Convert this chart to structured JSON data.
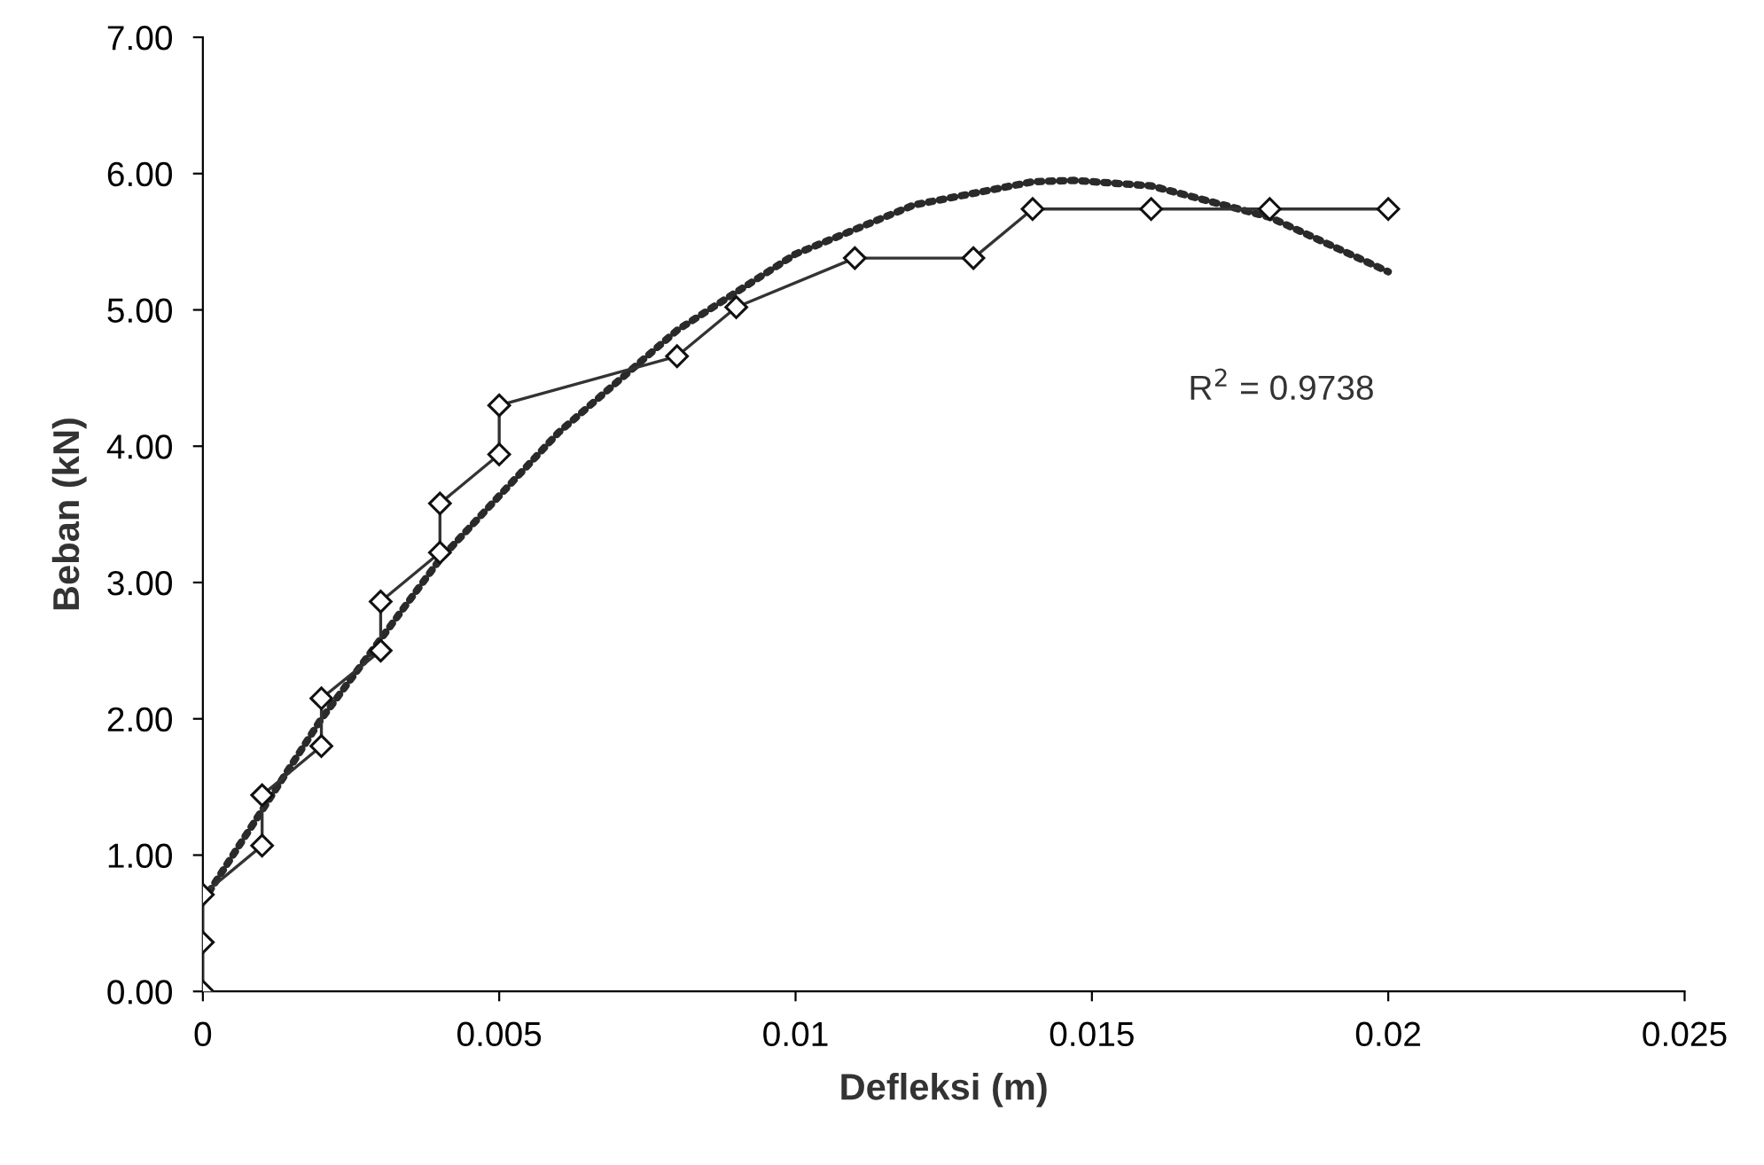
{
  "chart_data": {
    "type": "line",
    "xlabel": "Defleksi (m)",
    "ylabel": "Beban (kN)",
    "xlim": [
      0,
      0.025
    ],
    "xticks": [
      0,
      0.005,
      0.01,
      0.015,
      0.02,
      0.025
    ],
    "ylim": [
      0,
      7
    ],
    "yticks": [
      {
        "value": 0,
        "label": "0.00"
      },
      {
        "value": 1,
        "label": "1.00"
      },
      {
        "value": 2,
        "label": "2.00"
      },
      {
        "value": 3,
        "label": "3.00"
      },
      {
        "value": 4,
        "label": "4.00"
      },
      {
        "value": 5,
        "label": "5.00"
      },
      {
        "value": 6,
        "label": "6.00"
      },
      {
        "value": 7,
        "label": "7.00"
      }
    ],
    "grid": false,
    "legend": false,
    "annotations": [
      "R$^{2}$ = 0.9738"
    ],
    "series": [
      {
        "color": "#2a2a2a",
        "marker": "none",
        "line_style": "dotted",
        "x": [
          0,
          0.002,
          0.004,
          0.006,
          0.008,
          0.01,
          0.012,
          0.014,
          0.0147,
          0.016,
          0.018,
          0.02
        ],
        "values": [
          0.66,
          2.0,
          3.17,
          4.1,
          4.85,
          5.41,
          5.77,
          5.94,
          5.95,
          5.91,
          5.68,
          5.28
        ]
      },
      {
        "color": "#333333",
        "marker": "diamond",
        "line_style": "solid",
        "x": [
          0,
          0,
          0,
          0.001,
          0.001,
          0.002,
          0.002,
          0.003,
          0.003,
          0.004,
          0.004,
          0.005,
          0.005,
          0.008,
          0.009,
          0.011,
          0.013,
          0.014,
          0.016,
          0.018,
          0.02
        ],
        "values": [
          0,
          0.36,
          0.71,
          1.07,
          1.44,
          1.8,
          2.15,
          2.5,
          2.86,
          3.22,
          3.58,
          3.94,
          4.3,
          4.66,
          5.02,
          5.38,
          5.38,
          5.74,
          5.74,
          5.74,
          5.74
        ]
      }
    ]
  }
}
